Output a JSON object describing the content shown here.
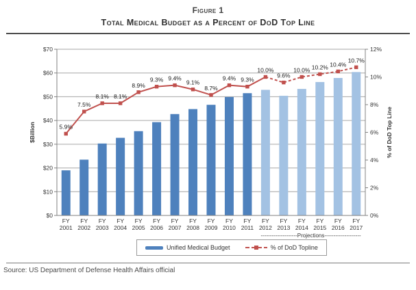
{
  "figure": {
    "label": "Figure 1",
    "title": "Total Medical Budget as a Percent of DoD Top Line"
  },
  "legend": {
    "bar_label": "Unified Medical Budget",
    "line_label": "% of DoD Topline"
  },
  "source": "Source: US Department of Defense Health Affairs official",
  "colors": {
    "bar_actual": "#4E81BD",
    "bar_projection": "#A3C2E3",
    "line": "#C0504D",
    "gridline": "#a6a6a6",
    "axis": "#808080",
    "label_text": "#1a1a1a",
    "tick_text": "#333333"
  },
  "chart_data": {
    "type": "bar",
    "x_tick_prefix": "FY",
    "categories": [
      "2001",
      "2002",
      "2003",
      "2004",
      "2005",
      "2006",
      "2007",
      "2008",
      "2009",
      "2010",
      "2011",
      "2012",
      "2013",
      "2014",
      "2015",
      "2016",
      "2017"
    ],
    "series": [
      {
        "name": "Unified Medical Budget",
        "type": "bar",
        "axis": "left",
        "values": [
          19.0,
          23.5,
          30.3,
          32.7,
          35.5,
          39.3,
          42.7,
          44.8,
          46.6,
          49.9,
          51.5,
          52.9,
          50.4,
          53.3,
          56.2,
          57.9,
          60.4
        ],
        "projection_from_index": 11
      },
      {
        "name": "% of DoD Topline",
        "type": "line",
        "axis": "right",
        "values": [
          5.9,
          7.5,
          8.1,
          8.1,
          8.9,
          9.3,
          9.4,
          9.1,
          8.7,
          9.4,
          9.3,
          10.0,
          9.6,
          10.0,
          10.2,
          10.4,
          10.7
        ],
        "dashed_from_index": 11,
        "data_labels": [
          "5.9%",
          "7.5%",
          "8.1%",
          "8.1%",
          "8.9%",
          "9.3%",
          "9.4%",
          "9.1%",
          "8.7%",
          "9.4%",
          "9.3%",
          "10.0%",
          "9.6%",
          "10.0%",
          "10.2%",
          "10.4%",
          "10.7%"
        ]
      }
    ],
    "left_axis": {
      "label": "$Billion",
      "min": 0,
      "max": 70,
      "step": 10,
      "tick_prefix": "$"
    },
    "right_axis": {
      "label": "% of DoD Top Line",
      "min": 0,
      "max": 12,
      "step": 2,
      "tick_suffix": "%"
    },
    "projections_note": "--------------------Projections--------------------",
    "grid": true,
    "legend_position": "bottom"
  }
}
